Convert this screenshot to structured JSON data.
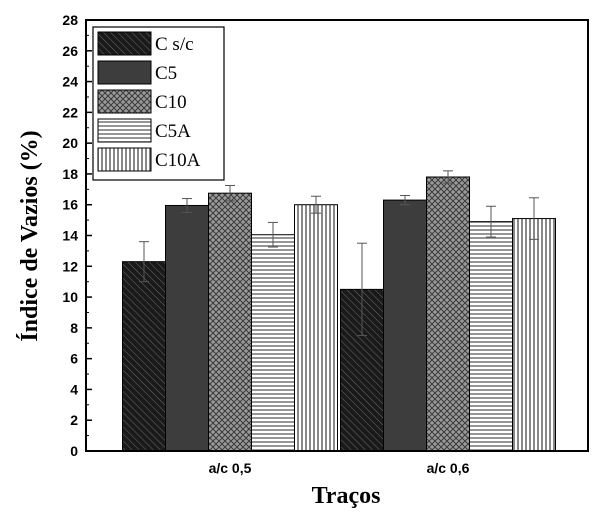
{
  "chart_data": {
    "type": "bar",
    "xlabel": "Traços",
    "ylabel": "Índice de Vazios (%)",
    "categories": [
      "a/c 0,5",
      "a/c 0,6"
    ],
    "ylim": [
      0,
      28
    ],
    "yticks": [
      0,
      2,
      4,
      6,
      8,
      10,
      12,
      14,
      16,
      18,
      20,
      22,
      24,
      26,
      28
    ],
    "grid": false,
    "legend_position": "top-left",
    "series": [
      {
        "name": "C s/c",
        "values": [
          12.3,
          10.5
        ],
        "errors": [
          1.3,
          3.0
        ],
        "fill": "diagonal-hatch",
        "color": "#1a1a1a"
      },
      {
        "name": "C5",
        "values": [
          15.95,
          16.3
        ],
        "errors": [
          0.45,
          0.3
        ],
        "fill": "solid",
        "color": "#3d3d3d"
      },
      {
        "name": "C10",
        "values": [
          16.75,
          17.8
        ],
        "errors": [
          0.5,
          0.4
        ],
        "fill": "crosshatch",
        "color": "#8a8a8a"
      },
      {
        "name": "C5A",
        "values": [
          14.05,
          14.9
        ],
        "errors": [
          0.8,
          1.0
        ],
        "fill": "horizontal-lines",
        "color": "#8a8a8a"
      },
      {
        "name": "C10A",
        "values": [
          16.0,
          15.1
        ],
        "errors": [
          0.55,
          1.35
        ],
        "fill": "vertical-lines",
        "color": "#555555"
      }
    ]
  }
}
